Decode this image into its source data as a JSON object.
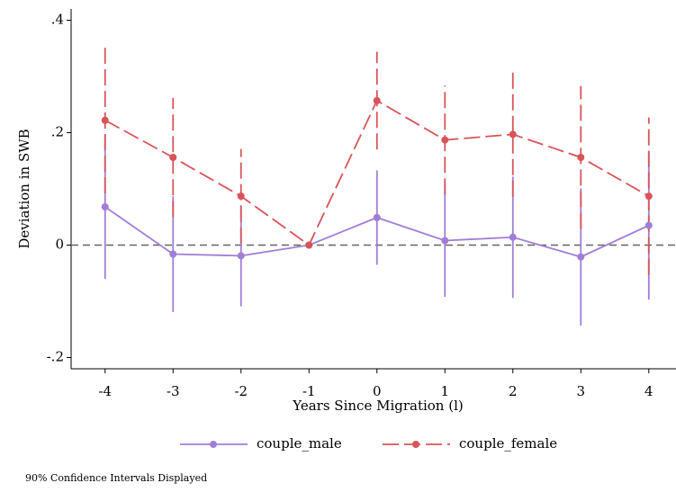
{
  "chart_data": {
    "type": "coefplot",
    "x_label": "Years Since Migration (l)",
    "y_label": "Deviation in SWB",
    "note": "90% Confidence Intervals Displayed",
    "x": [
      -4,
      -3,
      -2,
      -1,
      0,
      1,
      2,
      3,
      4
    ],
    "xlim": [
      -4.5,
      4.4
    ],
    "xticks": [
      -4,
      -3,
      -2,
      -1,
      0,
      1,
      2,
      3,
      4
    ],
    "ylim": [
      -0.22,
      0.42
    ],
    "yticks": [
      {
        "value": 0.4,
        "label": ".4"
      },
      {
        "value": 0.2,
        "label": ".2"
      },
      {
        "value": 0,
        "label": "0"
      },
      {
        "value": -0.2,
        "label": "-.2"
      }
    ],
    "yline": 0,
    "series": [
      {
        "name": "couple_male",
        "color": "#a07ed8",
        "dashed": false,
        "values": [
          0.068,
          -0.016,
          -0.019,
          0,
          0.049,
          0.008,
          0.014,
          -0.021,
          0.035
        ],
        "lower": [
          -0.06,
          -0.119,
          -0.109,
          null,
          -0.035,
          -0.092,
          -0.094,
          -0.143,
          -0.097
        ],
        "upper": [
          0.196,
          0.087,
          0.071,
          null,
          0.133,
          0.108,
          0.122,
          0.101,
          0.167
        ]
      },
      {
        "name": "couple_female",
        "color": "#d9545a",
        "dashed": true,
        "values": [
          0.222,
          0.156,
          0.087,
          0,
          0.257,
          0.187,
          0.197,
          0.156,
          0.087
        ],
        "lower": [
          0.092,
          0.05,
          0.003,
          null,
          0.17,
          0.09,
          0.086,
          0.029,
          -0.053
        ],
        "upper": [
          0.352,
          0.262,
          0.171,
          null,
          0.344,
          0.284,
          0.308,
          0.283,
          0.227
        ]
      }
    ]
  }
}
